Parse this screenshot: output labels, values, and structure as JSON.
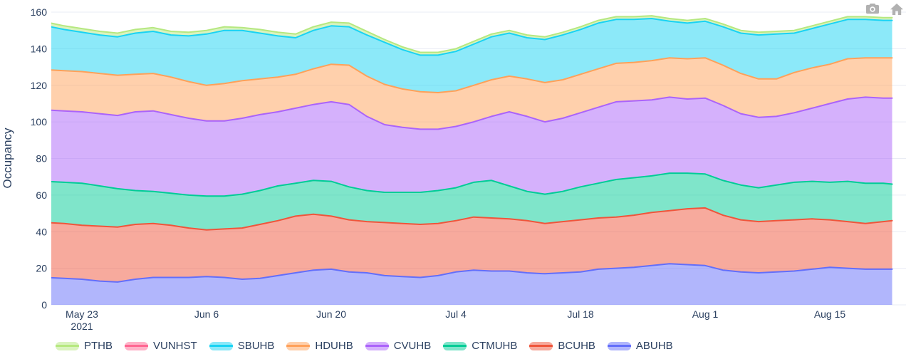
{
  "modebar": {
    "buttons": [
      {
        "name": "Download plot as png",
        "icon": "camera-icon"
      },
      {
        "name": "Reset axes",
        "icon": "home-icon"
      }
    ],
    "icon_color": "#b1b1b1"
  },
  "chart_data": {
    "type": "area",
    "stacked": true,
    "title": "",
    "xlabel": "",
    "ylabel": "Occupancy",
    "ylim": [
      0,
      160
    ],
    "yticks": [
      0,
      20,
      40,
      60,
      80,
      100,
      120,
      140,
      160
    ],
    "xticks": [
      {
        "date": "2021-05-23",
        "label": "May 23",
        "sublabel": "2021"
      },
      {
        "date": "2021-06-06",
        "label": "Jun 6"
      },
      {
        "date": "2021-06-20",
        "label": "Jun 20"
      },
      {
        "date": "2021-07-04",
        "label": "Jul 4"
      },
      {
        "date": "2021-07-18",
        "label": "Jul 18"
      },
      {
        "date": "2021-08-01",
        "label": "Aug 1"
      },
      {
        "date": "2021-08-15",
        "label": "Aug 15"
      }
    ],
    "layout": {
      "grid": "on",
      "grid_color": "#e9ecf4",
      "text_color": "#2a3f5f",
      "legend_position": "bottom",
      "fill_opacity": 0.5
    },
    "x": [
      "2021-05-19",
      "2021-05-21",
      "2021-05-23",
      "2021-05-25",
      "2021-05-27",
      "2021-05-29",
      "2021-05-31",
      "2021-06-02",
      "2021-06-04",
      "2021-06-06",
      "2021-06-08",
      "2021-06-10",
      "2021-06-12",
      "2021-06-14",
      "2021-06-16",
      "2021-06-18",
      "2021-06-20",
      "2021-06-22",
      "2021-06-24",
      "2021-06-26",
      "2021-06-28",
      "2021-06-30",
      "2021-07-02",
      "2021-07-04",
      "2021-07-06",
      "2021-07-08",
      "2021-07-10",
      "2021-07-12",
      "2021-07-14",
      "2021-07-16",
      "2021-07-18",
      "2021-07-20",
      "2021-07-22",
      "2021-07-24",
      "2021-07-26",
      "2021-07-28",
      "2021-07-30",
      "2021-08-01",
      "2021-08-03",
      "2021-08-05",
      "2021-08-07",
      "2021-08-09",
      "2021-08-11",
      "2021-08-13",
      "2021-08-15",
      "2021-08-17",
      "2021-08-19",
      "2021-08-21",
      "2021-08-22"
    ],
    "series": [
      {
        "name": "ABUHB",
        "color": "#636EFA",
        "values": [
          15,
          14.5,
          14,
          13,
          12.5,
          14,
          15,
          15,
          15,
          15.5,
          15,
          14,
          14.5,
          16,
          17.5,
          19,
          19.5,
          18,
          17.5,
          16,
          15.5,
          15,
          16,
          18,
          19,
          18.5,
          18.5,
          17.5,
          17,
          17.5,
          18,
          19.5,
          20,
          20.5,
          21.5,
          22.5,
          22,
          21.5,
          19,
          18,
          17.5,
          18,
          18.5,
          19.5,
          20.5,
          20,
          19.5,
          19.5,
          19.5
        ]
      },
      {
        "name": "BCUHB",
        "color": "#EF553B",
        "values": [
          30,
          30,
          29.5,
          30,
          30,
          30,
          29.5,
          28.5,
          27,
          25.5,
          26.5,
          28,
          29.5,
          30,
          31,
          30.5,
          29,
          28.5,
          28,
          29,
          29,
          29,
          28.5,
          28,
          29,
          29,
          28.5,
          28.5,
          27.5,
          28,
          28.5,
          28,
          28,
          28.5,
          29,
          29,
          30.5,
          31.5,
          30,
          28.5,
          28,
          28,
          28,
          27.5,
          26,
          25.5,
          25,
          26,
          26.5
        ]
      },
      {
        "name": "CTMUHB",
        "color": "#00CC96",
        "values": [
          22.5,
          22.5,
          23,
          22,
          21,
          18.5,
          17.5,
          17.5,
          18,
          18.5,
          18,
          18.5,
          18.5,
          19,
          18,
          18.5,
          19,
          18,
          17,
          16.5,
          17,
          17.5,
          18,
          18,
          19,
          20.5,
          18,
          16,
          16,
          16.5,
          18,
          19,
          20.5,
          20.5,
          20,
          20.5,
          19.5,
          18.5,
          19,
          19,
          18.5,
          19.5,
          20.5,
          20.5,
          20.5,
          22,
          22,
          21,
          20
        ]
      },
      {
        "name": "CVUHB",
        "color": "#AB63FA",
        "values": [
          39,
          39,
          39,
          39.5,
          40,
          43,
          44,
          43,
          42,
          41,
          41,
          41.5,
          41.5,
          40.5,
          41,
          41.5,
          43.5,
          45,
          40.5,
          37,
          35.5,
          34.5,
          33.5,
          33.5,
          33,
          35,
          40.5,
          41,
          39.5,
          40,
          40.5,
          41.5,
          42.5,
          42,
          41.5,
          41.5,
          40.5,
          41.5,
          41,
          39,
          38.5,
          37.5,
          38,
          40,
          43,
          45,
          47,
          46.5,
          47
        ]
      },
      {
        "name": "HDUHB",
        "color": "#FFA15A",
        "values": [
          22,
          22,
          22,
          22,
          22,
          20.5,
          20.5,
          20.5,
          20,
          19.5,
          20.5,
          20.5,
          19.5,
          19,
          18.5,
          19.5,
          20.5,
          21.5,
          22,
          22,
          21,
          20.5,
          20,
          19.5,
          20,
          20,
          19.5,
          20.5,
          21.5,
          21,
          21,
          21,
          21,
          21,
          21.5,
          21.5,
          22,
          22,
          22,
          22,
          21,
          20.5,
          22,
          22,
          21.5,
          22,
          21.5,
          22,
          22
        ]
      },
      {
        "name": "SBUHB",
        "color": "#19D3F3",
        "values": [
          24,
          22.5,
          21.5,
          21,
          21,
          22.5,
          23,
          23,
          25,
          28,
          29,
          27.5,
          25,
          22.5,
          20,
          21,
          21,
          21,
          22.5,
          23,
          21.5,
          20,
          20.5,
          21.5,
          22.5,
          23.5,
          23.5,
          22.5,
          23.5,
          24.5,
          24.5,
          25,
          24,
          23.5,
          23,
          20,
          19.5,
          20,
          21,
          22,
          24,
          24.5,
          21.5,
          21.5,
          22,
          21.5,
          21,
          20.5,
          20.5
        ]
      },
      {
        "name": "VUNHST",
        "color": "#FF6692",
        "values": [
          0,
          0,
          0,
          0,
          0,
          0,
          0,
          0,
          0,
          0,
          0,
          0,
          0,
          0,
          0,
          0,
          0,
          0,
          0,
          0,
          0,
          0,
          0,
          0,
          0,
          0,
          0,
          0,
          0,
          0,
          0,
          0,
          0,
          0,
          0,
          0,
          0,
          0,
          0,
          0,
          0,
          0,
          0,
          0,
          0,
          0,
          0,
          0,
          0
        ]
      },
      {
        "name": "PTHB",
        "color": "#B6E880",
        "values": [
          2,
          2,
          2,
          2,
          2,
          2,
          2,
          2,
          2,
          2,
          2,
          1.5,
          2,
          2,
          2,
          2,
          2,
          2,
          2,
          1.5,
          1.5,
          1.5,
          1.5,
          1.5,
          1.5,
          1.5,
          1.5,
          1.5,
          1.5,
          1.5,
          1.5,
          1.5,
          1.5,
          1.5,
          1.5,
          1.5,
          1.5,
          1.5,
          1.5,
          1.5,
          1.5,
          1.5,
          1.5,
          1.5,
          1.5,
          1.5,
          1.5,
          1.5,
          1.5
        ]
      }
    ],
    "legend": {
      "order": [
        "PTHB",
        "VUNHST",
        "SBUHB",
        "HDUHB",
        "CVUHB",
        "CTMUHB",
        "BCUHB",
        "ABUHB"
      ]
    }
  }
}
